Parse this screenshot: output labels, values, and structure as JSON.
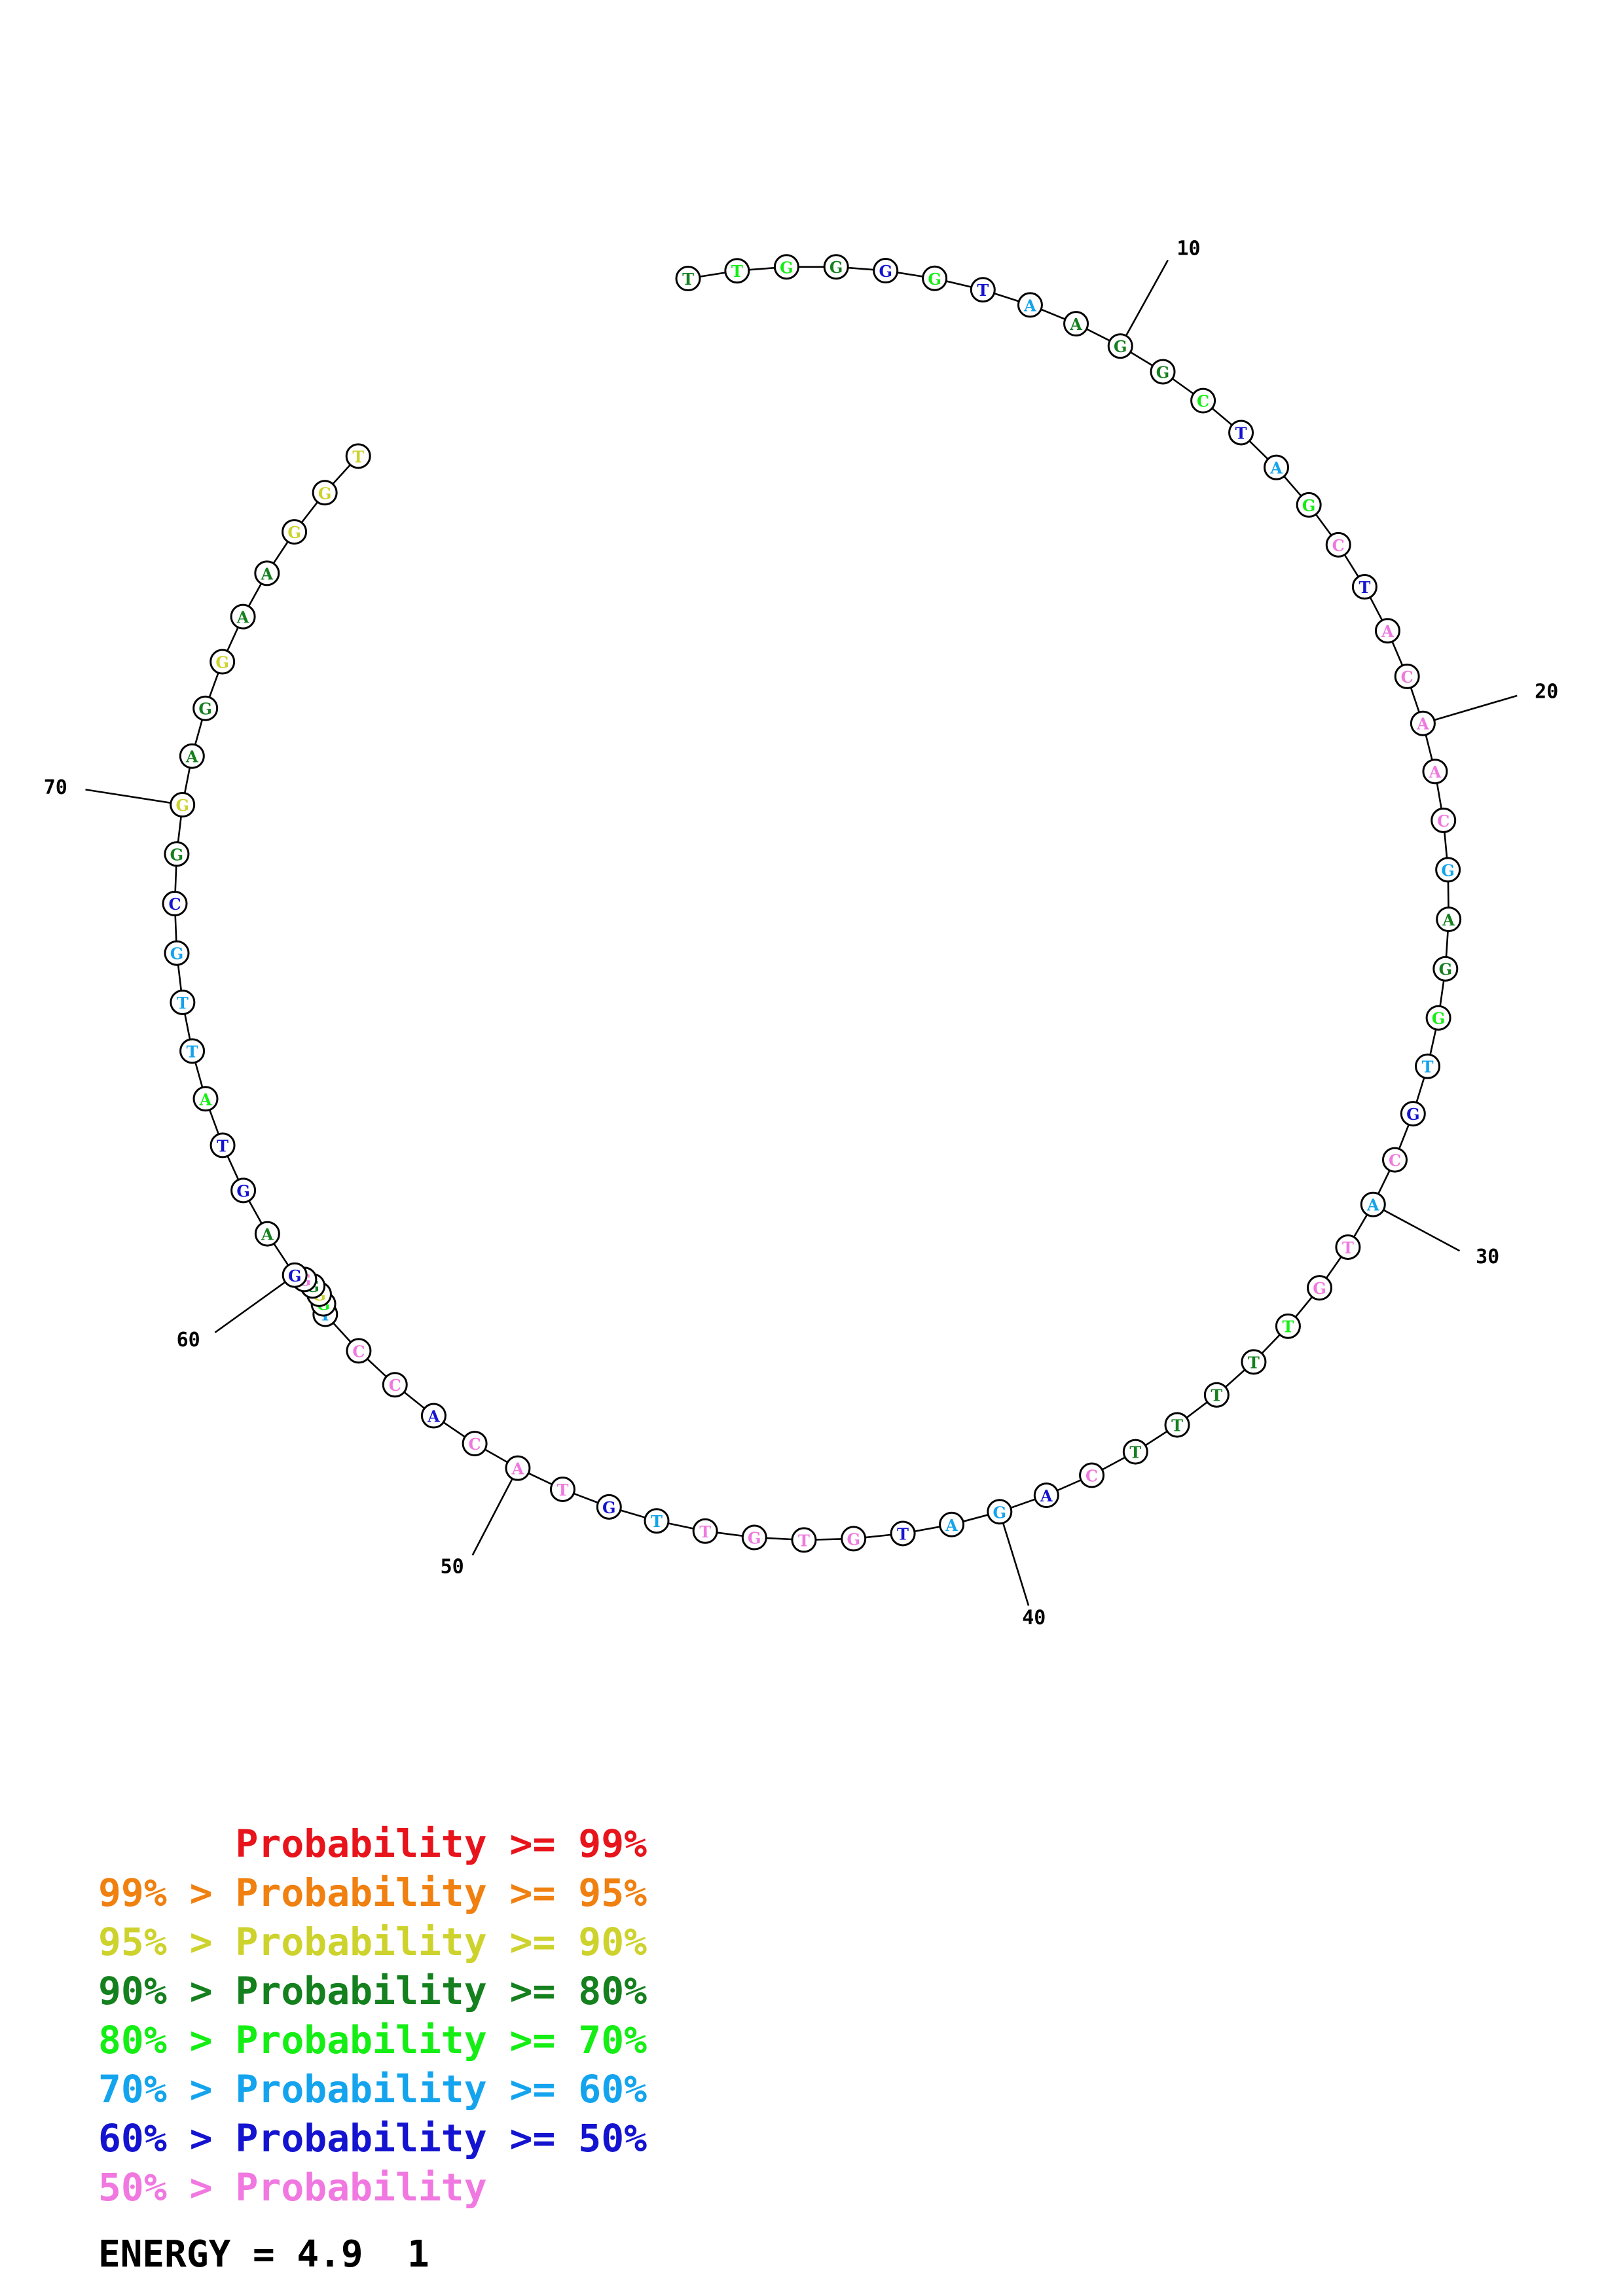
{
  "colors": {
    "red": "#e8141c",
    "orange": "#f08010",
    "yellow": "#cdd22c",
    "darkgreen": "#14801e",
    "lightgreen": "#14ee14",
    "cyan": "#14a4ee",
    "blue": "#1414d0",
    "pink": "#f078e0"
  },
  "structure": {
    "sequence_length": 78,
    "pairs": [
      [
        55,
        60
      ]
    ],
    "nucleotides": [
      {
        "n": 1,
        "base": "T",
        "color": "darkgreen"
      },
      {
        "n": 2,
        "base": "T",
        "color": "lightgreen"
      },
      {
        "n": 3,
        "base": "G",
        "color": "lightgreen"
      },
      {
        "n": 4,
        "base": "G",
        "color": "darkgreen"
      },
      {
        "n": 5,
        "base": "G",
        "color": "blue"
      },
      {
        "n": 6,
        "base": "G",
        "color": "lightgreen"
      },
      {
        "n": 7,
        "base": "T",
        "color": "blue"
      },
      {
        "n": 8,
        "base": "A",
        "color": "cyan"
      },
      {
        "n": 9,
        "base": "A",
        "color": "darkgreen"
      },
      {
        "n": 10,
        "base": "G",
        "color": "darkgreen"
      },
      {
        "n": 11,
        "base": "G",
        "color": "darkgreen"
      },
      {
        "n": 12,
        "base": "C",
        "color": "lightgreen"
      },
      {
        "n": 13,
        "base": "T",
        "color": "blue"
      },
      {
        "n": 14,
        "base": "A",
        "color": "cyan"
      },
      {
        "n": 15,
        "base": "G",
        "color": "lightgreen"
      },
      {
        "n": 16,
        "base": "C",
        "color": "pink"
      },
      {
        "n": 17,
        "base": "T",
        "color": "blue"
      },
      {
        "n": 18,
        "base": "A",
        "color": "pink"
      },
      {
        "n": 19,
        "base": "C",
        "color": "pink"
      },
      {
        "n": 20,
        "base": "A",
        "color": "pink"
      },
      {
        "n": 21,
        "base": "A",
        "color": "pink"
      },
      {
        "n": 22,
        "base": "C",
        "color": "pink"
      },
      {
        "n": 23,
        "base": "G",
        "color": "cyan"
      },
      {
        "n": 24,
        "base": "A",
        "color": "darkgreen"
      },
      {
        "n": 25,
        "base": "G",
        "color": "darkgreen"
      },
      {
        "n": 26,
        "base": "G",
        "color": "lightgreen"
      },
      {
        "n": 27,
        "base": "T",
        "color": "cyan"
      },
      {
        "n": 28,
        "base": "G",
        "color": "blue"
      },
      {
        "n": 29,
        "base": "C",
        "color": "pink"
      },
      {
        "n": 30,
        "base": "A",
        "color": "cyan"
      },
      {
        "n": 31,
        "base": "T",
        "color": "pink"
      },
      {
        "n": 32,
        "base": "G",
        "color": "pink"
      },
      {
        "n": 33,
        "base": "T",
        "color": "lightgreen"
      },
      {
        "n": 34,
        "base": "T",
        "color": "darkgreen"
      },
      {
        "n": 35,
        "base": "T",
        "color": "darkgreen"
      },
      {
        "n": 36,
        "base": "T",
        "color": "darkgreen"
      },
      {
        "n": 37,
        "base": "T",
        "color": "darkgreen"
      },
      {
        "n": 38,
        "base": "C",
        "color": "pink"
      },
      {
        "n": 39,
        "base": "A",
        "color": "blue"
      },
      {
        "n": 40,
        "base": "G",
        "color": "cyan"
      },
      {
        "n": 41,
        "base": "A",
        "color": "cyan"
      },
      {
        "n": 42,
        "base": "T",
        "color": "blue"
      },
      {
        "n": 43,
        "base": "G",
        "color": "pink"
      },
      {
        "n": 44,
        "base": "T",
        "color": "pink"
      },
      {
        "n": 45,
        "base": "G",
        "color": "pink"
      },
      {
        "n": 46,
        "base": "T",
        "color": "pink"
      },
      {
        "n": 47,
        "base": "T",
        "color": "cyan"
      },
      {
        "n": 48,
        "base": "G",
        "color": "blue"
      },
      {
        "n": 49,
        "base": "T",
        "color": "pink"
      },
      {
        "n": 50,
        "base": "A",
        "color": "pink"
      },
      {
        "n": 51,
        "base": "C",
        "color": "pink"
      },
      {
        "n": 52,
        "base": "A",
        "color": "blue"
      },
      {
        "n": 53,
        "base": "C",
        "color": "pink"
      },
      {
        "n": 54,
        "base": "C",
        "color": "pink"
      },
      {
        "n": 55,
        "base": "T",
        "color": "cyan"
      },
      {
        "n": 56,
        "base": "G",
        "color": "lightgreen"
      },
      {
        "n": 57,
        "base": "G",
        "color": "yellow"
      },
      {
        "n": 58,
        "base": "G",
        "color": "darkgreen"
      },
      {
        "n": 59,
        "base": "G",
        "color": "pink"
      },
      {
        "n": 60,
        "base": "G",
        "color": "blue"
      },
      {
        "n": 61,
        "base": "A",
        "color": "darkgreen"
      },
      {
        "n": 62,
        "base": "G",
        "color": "blue"
      },
      {
        "n": 63,
        "base": "T",
        "color": "blue"
      },
      {
        "n": 64,
        "base": "A",
        "color": "lightgreen"
      },
      {
        "n": 65,
        "base": "T",
        "color": "cyan"
      },
      {
        "n": 66,
        "base": "T",
        "color": "cyan"
      },
      {
        "n": 67,
        "base": "G",
        "color": "cyan"
      },
      {
        "n": 68,
        "base": "C",
        "color": "blue"
      },
      {
        "n": 69,
        "base": "G",
        "color": "darkgreen"
      },
      {
        "n": 70,
        "base": "G",
        "color": "yellow"
      },
      {
        "n": 71,
        "base": "A",
        "color": "darkgreen"
      },
      {
        "n": 72,
        "base": "G",
        "color": "darkgreen"
      },
      {
        "n": 73,
        "base": "G",
        "color": "yellow"
      },
      {
        "n": 74,
        "base": "A",
        "color": "darkgreen"
      },
      {
        "n": 75,
        "base": "A",
        "color": "darkgreen"
      },
      {
        "n": 76,
        "base": "G",
        "color": "yellow"
      },
      {
        "n": 77,
        "base": "G",
        "color": "yellow"
      },
      {
        "n": 78,
        "base": "T",
        "color": "yellow"
      }
    ],
    "tick_labels": [
      {
        "n": 10,
        "text": "10"
      },
      {
        "n": 20,
        "text": "20"
      },
      {
        "n": 30,
        "text": "30"
      },
      {
        "n": 40,
        "text": "40"
      },
      {
        "n": 50,
        "text": "50"
      },
      {
        "n": 60,
        "text": "60"
      },
      {
        "n": 70,
        "text": "70"
      }
    ]
  },
  "legend": {
    "rows": [
      {
        "prefix": "",
        "middle": "Probability",
        "suffix": ">= 99%",
        "color": "red"
      },
      {
        "prefix": "99% >",
        "middle": "Probability",
        "suffix": ">= 95%",
        "color": "orange"
      },
      {
        "prefix": "95% >",
        "middle": "Probability",
        "suffix": ">= 90%",
        "color": "yellow"
      },
      {
        "prefix": "90% >",
        "middle": "Probability",
        "suffix": ">= 80%",
        "color": "darkgreen"
      },
      {
        "prefix": "80% >",
        "middle": "Probability",
        "suffix": ">= 70%",
        "color": "lightgreen"
      },
      {
        "prefix": "70% >",
        "middle": "Probability",
        "suffix": ">= 60%",
        "color": "cyan"
      },
      {
        "prefix": "60% >",
        "middle": "Probability",
        "suffix": ">= 50%",
        "color": "blue"
      },
      {
        "prefix": "50% >",
        "middle": "Probability",
        "suffix": "",
        "color": "pink"
      }
    ],
    "energy_text": "ENERGY = 4.9  1"
  }
}
